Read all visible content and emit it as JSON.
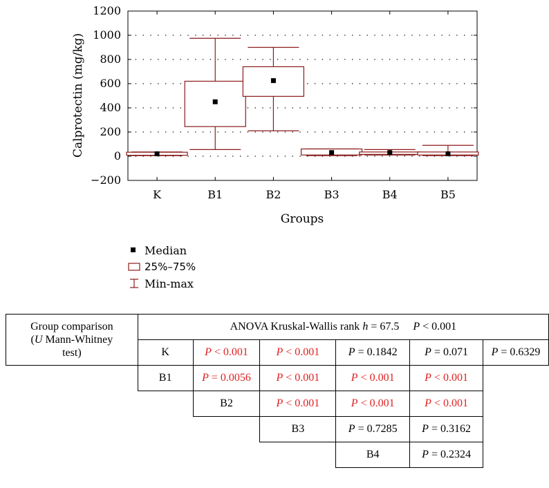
{
  "chart_data": {
    "type": "box",
    "xlabel": "Groups",
    "ylabel": "Calprotectin (mg/kg)",
    "ylim": [
      -200,
      1200
    ],
    "yticks": [
      -200,
      0,
      200,
      400,
      600,
      800,
      1000,
      1200
    ],
    "grid": "dotted horizontal",
    "categories": [
      "K",
      "B1",
      "B2",
      "B3",
      "B4",
      "B5"
    ],
    "boxes": [
      {
        "group": "K",
        "min": 5,
        "q1": 8,
        "median": 20,
        "q3": 33,
        "max": 35
      },
      {
        "group": "B1",
        "min": 55,
        "q1": 245,
        "median": 450,
        "q3": 620,
        "max": 975
      },
      {
        "group": "B2",
        "min": 210,
        "q1": 495,
        "median": 625,
        "q3": 740,
        "max": 900
      },
      {
        "group": "B3",
        "min": 5,
        "q1": 10,
        "median": 30,
        "q3": 60,
        "max": 60
      },
      {
        "group": "B4",
        "min": 10,
        "q1": 15,
        "median": 30,
        "q3": 35,
        "max": 55
      },
      {
        "group": "B5",
        "min": 5,
        "q1": 10,
        "median": 20,
        "q3": 35,
        "max": 90
      }
    ],
    "colors": {
      "box": "#8b1a1a",
      "median": "#000000"
    }
  },
  "legend": {
    "median": "Median",
    "box": "25%–75%",
    "whisker": "Min-max"
  },
  "table": {
    "group_header": [
      "Group comparison",
      "Mann-Whitney",
      "test)"
    ],
    "u_label": "U",
    "anova_prefix": "ANOVA Kruskal-Wallis rank",
    "anova_h": "h",
    "anova_h_value": "= 67.5",
    "anova_p_value": "< 0.001",
    "p_letter": "P",
    "rows": [
      {
        "label": "K",
        "cells": [
          {
            "v": "< 0.001",
            "sig": true
          },
          {
            "v": "< 0.001",
            "sig": true
          },
          {
            "v": "= 0.1842",
            "sig": false
          },
          {
            "v": "= 0.071",
            "sig": false
          },
          {
            "v": "= 0.6329",
            "sig": false
          }
        ]
      },
      {
        "label": "B1",
        "cells": [
          {
            "v": "= 0.0056",
            "sig": true
          },
          {
            "v": "< 0.001",
            "sig": true
          },
          {
            "v": "< 0.001",
            "sig": true
          },
          {
            "v": "< 0.001",
            "sig": true
          }
        ]
      },
      {
        "label": "B2",
        "cells": [
          {
            "v": "< 0.001",
            "sig": true
          },
          {
            "v": "< 0.001",
            "sig": true
          },
          {
            "v": "< 0.001",
            "sig": true
          }
        ]
      },
      {
        "label": "B3",
        "cells": [
          {
            "v": "= 0.7285",
            "sig": false
          },
          {
            "v": "= 0.3162",
            "sig": false
          }
        ]
      },
      {
        "label": "B4",
        "cells": [
          {
            "v": "= 0.2324",
            "sig": false
          }
        ]
      }
    ]
  }
}
